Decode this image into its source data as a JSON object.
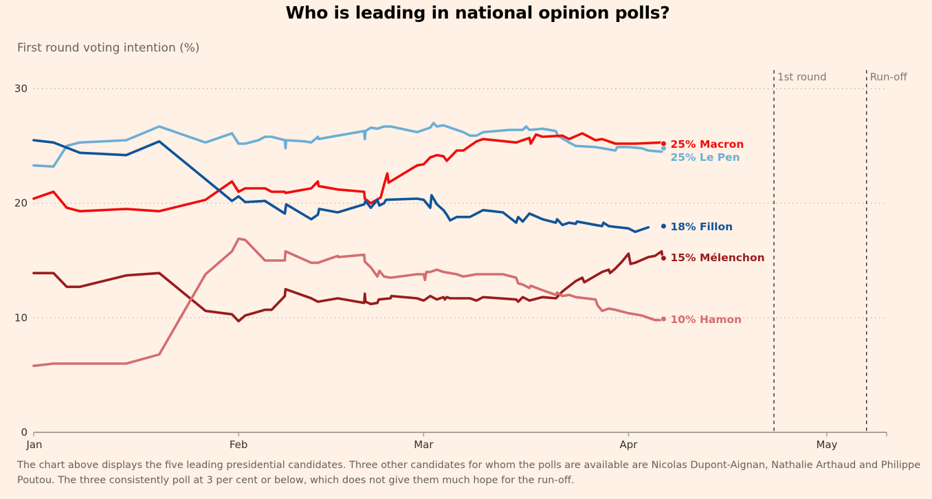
{
  "title": "Who is leading in national opinion polls?",
  "caption": "The chart above displays the five leading presidential candidates. Three other candidates for whom the polls are available are Nicolas Dupont-Aignan, Nathalie Arthaud and Philippe Poutou. The three consistently poll at 3 per cent or below, which does not give them much hope for the run-off.",
  "chart_data": {
    "type": "line",
    "title": "Who is leading in national opinion polls?",
    "ylabel": "First round voting intention (%)",
    "xlabel": "",
    "ylim": [
      0,
      30
    ],
    "yticks": [
      0,
      10,
      20,
      30
    ],
    "x_unit": "day of year 2017 (1 = Jan 1)",
    "xlim": [
      1,
      134
    ],
    "xticks": [
      {
        "label": "Jan",
        "x": 1
      },
      {
        "label": "Feb",
        "x": 32
      },
      {
        "label": "Mar",
        "x": 60
      },
      {
        "label": "Apr",
        "x": 91
      },
      {
        "label": "May",
        "x": 121
      }
    ],
    "grid": "horizontal dotted",
    "events": [
      {
        "label": "1st round",
        "x": 113
      },
      {
        "label": "Run-off",
        "x": 127
      }
    ],
    "series": [
      {
        "name": "Le Pen",
        "end_label": "25% Le Pen",
        "end_value": 25,
        "color": "#6aaed6",
        "points": [
          [
            1,
            23.3
          ],
          [
            4,
            23.2
          ],
          [
            6,
            25.0
          ],
          [
            8,
            25.3
          ],
          [
            15,
            25.5
          ],
          [
            20,
            26.7
          ],
          [
            27,
            25.3
          ],
          [
            31,
            26.1
          ],
          [
            32,
            25.2
          ],
          [
            33,
            25.2
          ],
          [
            35,
            25.5
          ],
          [
            36,
            25.8
          ],
          [
            37,
            25.8
          ],
          [
            39,
            25.5
          ],
          [
            39.1,
            24.8
          ],
          [
            39.2,
            25.5
          ],
          [
            42,
            25.4
          ],
          [
            43,
            25.3
          ],
          [
            44,
            25.8
          ],
          [
            44.1,
            25.6
          ],
          [
            47,
            25.9
          ],
          [
            51,
            26.3
          ],
          [
            51.1,
            25.6
          ],
          [
            51.2,
            26.3
          ],
          [
            52,
            26.6
          ],
          [
            53,
            26.5
          ],
          [
            54,
            26.7
          ],
          [
            55,
            26.7
          ],
          [
            59,
            26.2
          ],
          [
            61,
            26.6
          ],
          [
            61.5,
            27.0
          ],
          [
            62,
            26.7
          ],
          [
            63,
            26.8
          ],
          [
            64,
            26.6
          ],
          [
            66,
            26.2
          ],
          [
            67,
            25.9
          ],
          [
            68,
            25.9
          ],
          [
            69,
            26.2
          ],
          [
            73,
            26.4
          ],
          [
            75,
            26.4
          ],
          [
            75.5,
            26.7
          ],
          [
            76,
            26.4
          ],
          [
            78,
            26.5
          ],
          [
            80,
            26.3
          ],
          [
            80.3,
            25.9
          ],
          [
            82,
            25.3
          ],
          [
            83,
            25.0
          ],
          [
            86,
            24.9
          ],
          [
            88,
            24.7
          ],
          [
            89,
            24.6
          ],
          [
            89.3,
            24.9
          ],
          [
            91,
            24.9
          ],
          [
            93,
            24.8
          ],
          [
            94,
            24.6
          ],
          [
            96,
            24.5
          ],
          [
            96.3,
            24.8
          ]
        ]
      },
      {
        "name": "Macron",
        "end_label": "25% Macron",
        "end_value": 25,
        "color": "#f00d0d",
        "points": [
          [
            1,
            20.4
          ],
          [
            4,
            21.0
          ],
          [
            6,
            19.6
          ],
          [
            8,
            19.3
          ],
          [
            15,
            19.5
          ],
          [
            20,
            19.3
          ],
          [
            27,
            20.3
          ],
          [
            31,
            21.9
          ],
          [
            32,
            21.0
          ],
          [
            33,
            21.3
          ],
          [
            36,
            21.3
          ],
          [
            37,
            21.0
          ],
          [
            39,
            21.0
          ],
          [
            39.1,
            20.9
          ],
          [
            43,
            21.3
          ],
          [
            44,
            21.9
          ],
          [
            44.1,
            21.5
          ],
          [
            47,
            21.2
          ],
          [
            51,
            21.0
          ],
          [
            51.1,
            20.4
          ],
          [
            52,
            20.0
          ],
          [
            53.5,
            20.5
          ],
          [
            54,
            21.6
          ],
          [
            54.5,
            22.6
          ],
          [
            54.7,
            21.8
          ],
          [
            59,
            23.3
          ],
          [
            60,
            23.4
          ],
          [
            61,
            24.0
          ],
          [
            62,
            24.2
          ],
          [
            63,
            24.1
          ],
          [
            63.5,
            23.7
          ],
          [
            65,
            24.6
          ],
          [
            66,
            24.6
          ],
          [
            68,
            25.4
          ],
          [
            69,
            25.6
          ],
          [
            74,
            25.3
          ],
          [
            76,
            25.7
          ],
          [
            76.2,
            25.2
          ],
          [
            77,
            26.0
          ],
          [
            78,
            25.8
          ],
          [
            81,
            25.9
          ],
          [
            82,
            25.6
          ],
          [
            84,
            26.1
          ],
          [
            86,
            25.5
          ],
          [
            87,
            25.6
          ],
          [
            89,
            25.2
          ],
          [
            92,
            25.2
          ],
          [
            96,
            25.3
          ]
        ]
      },
      {
        "name": "Fillon",
        "end_label": "18% Fillon",
        "end_value": 18,
        "color": "#0f5499",
        "points": [
          [
            1,
            25.5
          ],
          [
            4,
            25.3
          ],
          [
            8,
            24.4
          ],
          [
            15,
            24.2
          ],
          [
            20,
            25.4
          ],
          [
            31,
            20.2
          ],
          [
            32,
            20.6
          ],
          [
            33,
            20.1
          ],
          [
            36,
            20.2
          ],
          [
            39,
            19.1
          ],
          [
            39.2,
            19.9
          ],
          [
            43,
            18.6
          ],
          [
            44,
            19.0
          ],
          [
            44.2,
            19.5
          ],
          [
            47,
            19.2
          ],
          [
            51,
            19.9
          ],
          [
            51.2,
            20.2
          ],
          [
            52,
            19.6
          ],
          [
            53,
            20.3
          ],
          [
            53.3,
            19.8
          ],
          [
            54,
            20.0
          ],
          [
            54.3,
            20.3
          ],
          [
            59,
            20.4
          ],
          [
            60,
            20.3
          ],
          [
            61,
            19.6
          ],
          [
            61.2,
            20.7
          ],
          [
            62,
            19.9
          ],
          [
            63,
            19.4
          ],
          [
            63.5,
            19.0
          ],
          [
            64,
            18.5
          ],
          [
            65,
            18.8
          ],
          [
            67,
            18.8
          ],
          [
            69,
            19.4
          ],
          [
            72,
            19.2
          ],
          [
            74,
            18.3
          ],
          [
            74.3,
            18.8
          ],
          [
            75,
            18.4
          ],
          [
            76,
            19.1
          ],
          [
            78,
            18.6
          ],
          [
            80,
            18.3
          ],
          [
            80.2,
            18.6
          ],
          [
            81,
            18.1
          ],
          [
            82,
            18.3
          ],
          [
            83,
            18.2
          ],
          [
            83.2,
            18.4
          ],
          [
            86,
            18.1
          ],
          [
            87,
            18.0
          ],
          [
            87.2,
            18.3
          ],
          [
            88,
            18.0
          ],
          [
            91,
            17.8
          ],
          [
            92,
            17.5
          ],
          [
            94,
            17.9
          ]
        ]
      },
      {
        "name": "Mélenchon",
        "end_label": "15% Mélenchon",
        "end_value": 15,
        "color": "#991b1e",
        "points": [
          [
            1,
            13.9
          ],
          [
            4,
            13.9
          ],
          [
            6,
            12.7
          ],
          [
            8,
            12.7
          ],
          [
            15,
            13.7
          ],
          [
            20,
            13.9
          ],
          [
            27,
            10.6
          ],
          [
            31,
            10.3
          ],
          [
            32,
            9.7
          ],
          [
            33,
            10.2
          ],
          [
            36,
            10.7
          ],
          [
            37,
            10.7
          ],
          [
            39,
            11.9
          ],
          [
            39.1,
            12.5
          ],
          [
            43,
            11.7
          ],
          [
            44,
            11.4
          ],
          [
            47,
            11.7
          ],
          [
            51,
            11.3
          ],
          [
            51.1,
            12.1
          ],
          [
            51.2,
            11.4
          ],
          [
            52,
            11.2
          ],
          [
            53,
            11.3
          ],
          [
            53.2,
            11.6
          ],
          [
            55,
            11.7
          ],
          [
            55.1,
            11.9
          ],
          [
            59,
            11.7
          ],
          [
            60,
            11.5
          ],
          [
            61,
            11.9
          ],
          [
            62,
            11.6
          ],
          [
            63,
            11.8
          ],
          [
            63.2,
            11.6
          ],
          [
            63.5,
            11.8
          ],
          [
            64,
            11.7
          ],
          [
            67,
            11.7
          ],
          [
            68,
            11.5
          ],
          [
            69,
            11.8
          ],
          [
            74,
            11.6
          ],
          [
            74.3,
            11.4
          ],
          [
            75,
            11.8
          ],
          [
            76,
            11.5
          ],
          [
            78,
            11.8
          ],
          [
            80,
            11.7
          ],
          [
            80.2,
            11.8
          ],
          [
            81,
            12.3
          ],
          [
            83,
            13.2
          ],
          [
            84,
            13.5
          ],
          [
            84.3,
            13.1
          ],
          [
            87,
            14.0
          ],
          [
            88,
            14.2
          ],
          [
            88.2,
            13.9
          ],
          [
            89,
            14.3
          ],
          [
            90,
            14.9
          ],
          [
            91,
            15.6
          ],
          [
            91.3,
            14.7
          ],
          [
            92,
            14.8
          ],
          [
            94,
            15.3
          ],
          [
            95,
            15.4
          ],
          [
            96,
            15.8
          ],
          [
            96.2,
            15.1
          ]
        ]
      },
      {
        "name": "Hamon",
        "end_label": "10% Hamon",
        "end_value": 10,
        "color": "#d36e70",
        "points": [
          [
            1,
            5.8
          ],
          [
            4,
            6.0
          ],
          [
            6,
            6.0
          ],
          [
            15,
            6.0
          ],
          [
            20,
            6.8
          ],
          [
            27,
            13.8
          ],
          [
            31,
            15.8
          ],
          [
            32,
            16.9
          ],
          [
            33,
            16.8
          ],
          [
            36,
            15.0
          ],
          [
            37,
            15.0
          ],
          [
            39,
            15.0
          ],
          [
            39.1,
            15.8
          ],
          [
            43,
            14.8
          ],
          [
            44,
            14.8
          ],
          [
            47,
            15.4
          ],
          [
            47.1,
            15.3
          ],
          [
            51,
            15.5
          ],
          [
            51.1,
            14.9
          ],
          [
            52,
            14.4
          ],
          [
            53,
            13.6
          ],
          [
            53.3,
            14.1
          ],
          [
            54,
            13.6
          ],
          [
            55,
            13.5
          ],
          [
            59,
            13.8
          ],
          [
            60,
            13.8
          ],
          [
            60.2,
            13.3
          ],
          [
            60.4,
            14.0
          ],
          [
            61,
            14.0
          ],
          [
            62,
            14.2
          ],
          [
            63,
            14.0
          ],
          [
            64,
            13.9
          ],
          [
            65,
            13.8
          ],
          [
            66,
            13.6
          ],
          [
            67,
            13.7
          ],
          [
            68,
            13.8
          ],
          [
            72,
            13.8
          ],
          [
            74,
            13.5
          ],
          [
            74.3,
            13.0
          ],
          [
            75,
            12.9
          ],
          [
            76,
            12.6
          ],
          [
            76.2,
            12.8
          ],
          [
            78,
            12.4
          ],
          [
            80,
            12.0
          ],
          [
            80.2,
            12.2
          ],
          [
            81,
            11.9
          ],
          [
            82,
            12.0
          ],
          [
            83,
            11.8
          ],
          [
            86,
            11.6
          ],
          [
            86.3,
            11.1
          ],
          [
            87,
            10.6
          ],
          [
            88,
            10.8
          ],
          [
            89,
            10.7
          ],
          [
            91,
            10.4
          ],
          [
            93,
            10.2
          ],
          [
            95,
            9.8
          ],
          [
            96.3,
            9.8
          ]
        ]
      }
    ]
  }
}
